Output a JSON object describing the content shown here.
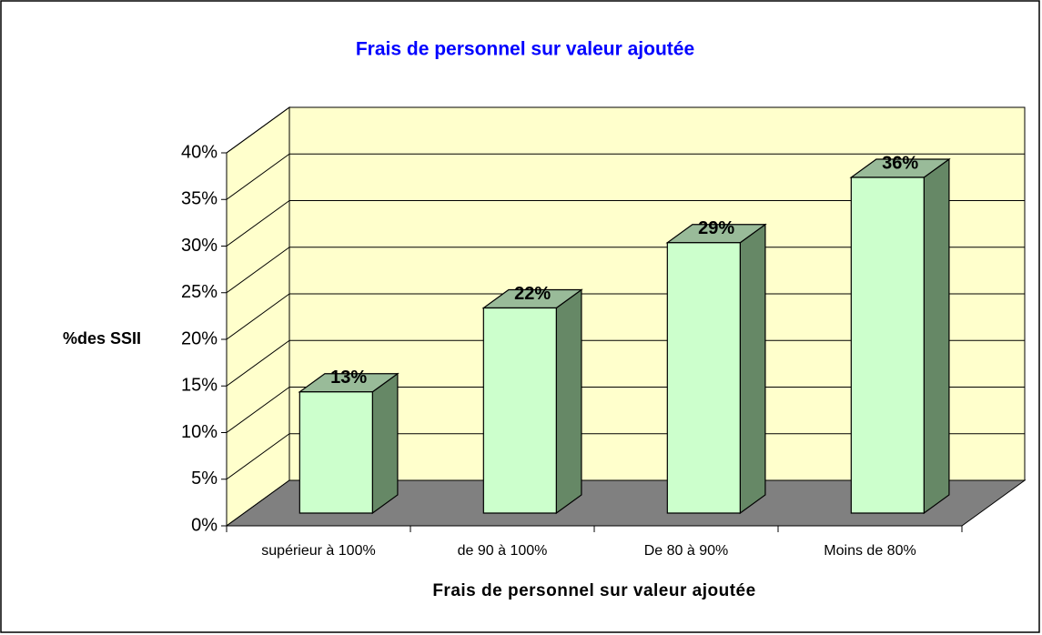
{
  "chart_data": {
    "type": "bar3d",
    "title": "Frais de personnel sur valeur ajoutée",
    "x_label": "Frais de personnel sur valeur ajoutée",
    "y_label": "%des SSII",
    "categories": [
      "supérieur à 100%",
      "de 90 à 100%",
      "De 80 à 90%",
      "Moins de 80%"
    ],
    "values": [
      13,
      22,
      29,
      36
    ],
    "value_labels": [
      "13%",
      "22%",
      "29%",
      "36%"
    ],
    "color": "#ccffcc",
    "ylim": [
      0,
      40
    ],
    "yticks": [
      {
        "value": 0,
        "label": "0%"
      },
      {
        "value": 5,
        "label": "5%"
      },
      {
        "value": 10,
        "label": "10%"
      },
      {
        "value": 15,
        "label": "15%"
      },
      {
        "value": 20,
        "label": "20%"
      },
      {
        "value": 25,
        "label": "25%"
      },
      {
        "value": 30,
        "label": "30%"
      },
      {
        "value": 35,
        "label": "35%"
      },
      {
        "value": 40,
        "label": "40%"
      }
    ],
    "grid": true
  }
}
